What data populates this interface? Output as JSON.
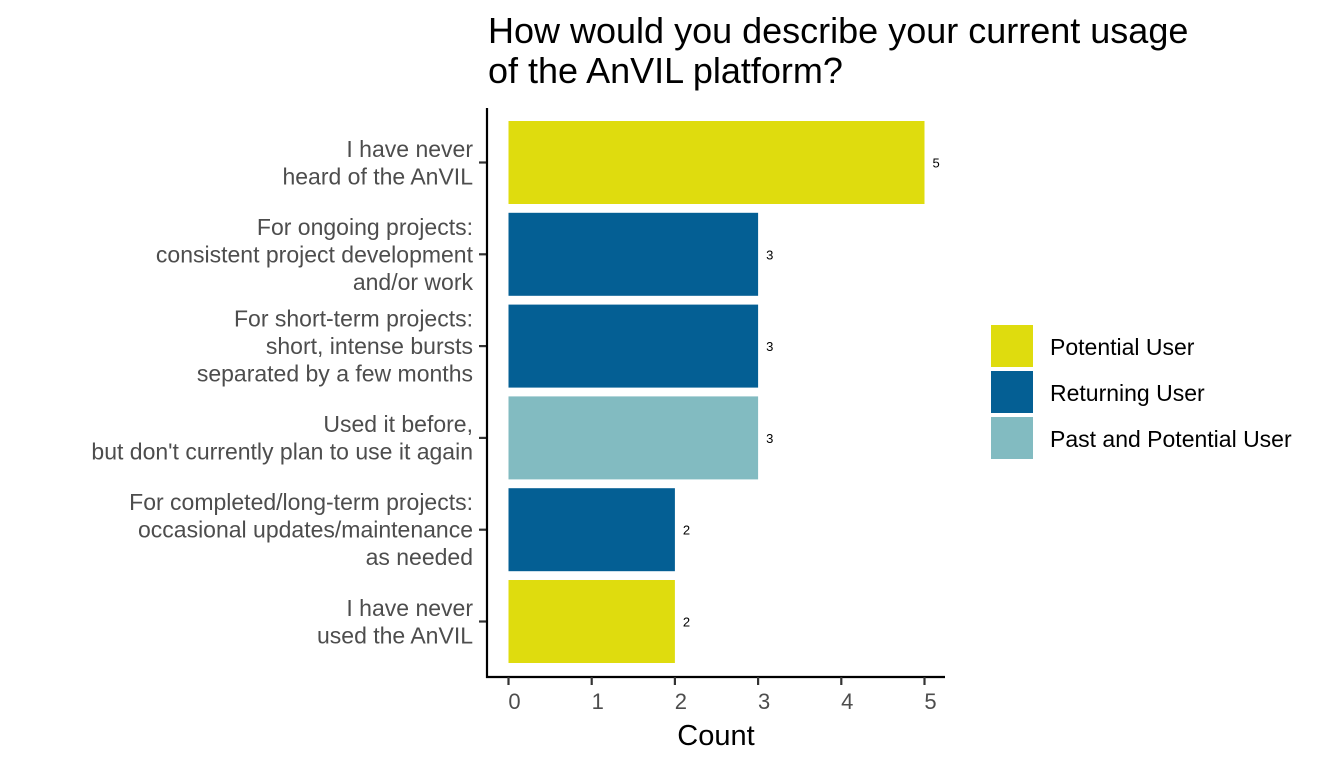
{
  "chart_data": {
    "type": "bar",
    "orientation": "horizontal",
    "title_lines": [
      "How would you describe your current usage",
      "of the AnVIL platform?"
    ],
    "xlabel": "Count",
    "ylabel": "",
    "xlim": [
      0,
      5
    ],
    "x_ticks": [
      0,
      1,
      2,
      3,
      4,
      5
    ],
    "grid": false,
    "legend_position": "right",
    "series_colors": {
      "Potential User": "#dfdc0e",
      "Returning User": "#045f94",
      "Past and Potential User": "#82bbc1"
    },
    "legend": [
      "Potential User",
      "Returning User",
      "Past and Potential User"
    ],
    "bars": [
      {
        "label_lines": [
          "I have never",
          "heard of the AnVIL"
        ],
        "value": 5,
        "group": "Potential User"
      },
      {
        "label_lines": [
          "For ongoing projects:",
          "consistent project development",
          "and/or work"
        ],
        "value": 3,
        "group": "Returning User"
      },
      {
        "label_lines": [
          "For short-term projects:",
          "short, intense bursts",
          "separated by a few months"
        ],
        "value": 3,
        "group": "Returning User"
      },
      {
        "label_lines": [
          "Used it before,",
          "but don't currently plan to use it again"
        ],
        "value": 3,
        "group": "Past and Potential User"
      },
      {
        "label_lines": [
          "For completed/long-term projects:",
          "occasional updates/maintenance",
          "as needed"
        ],
        "value": 2,
        "group": "Returning User"
      },
      {
        "label_lines": [
          "I have never",
          "used the AnVIL"
        ],
        "value": 2,
        "group": "Potential User"
      }
    ]
  }
}
